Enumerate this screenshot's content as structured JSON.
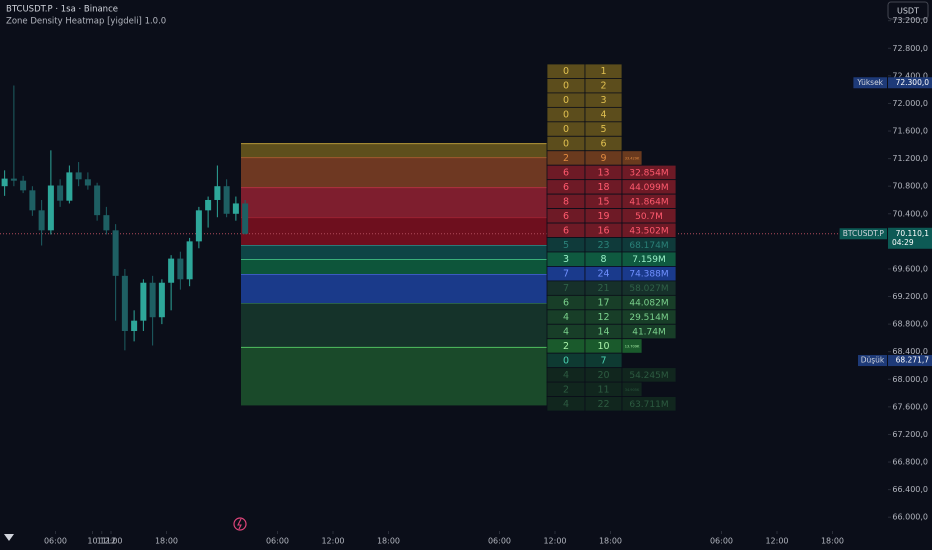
{
  "chart_data": {
    "type": "candlestick",
    "title": "BTCUSDT.P · 1sa · Binance",
    "subtitle": "Zone Density Heatmap [yigdeli] 1.0.0",
    "currency_button": "USDT",
    "xlim": [
      0,
      96
    ],
    "xticks": [
      {
        "value": 6,
        "label": "06:00"
      },
      {
        "value": 12,
        "label": "12:00"
      },
      {
        "value": 18,
        "label": "18:00"
      },
      10,
      {
        "value": 30,
        "label": "06:00"
      },
      {
        "value": 36,
        "label": "12:00"
      },
      {
        "value": 42,
        "label": "18:00"
      },
      11,
      {
        "value": 54,
        "label": "06:00"
      },
      {
        "value": 60,
        "label": "12:00"
      },
      {
        "value": 66,
        "label": "18:00"
      },
      12,
      {
        "value": 78,
        "label": "06:00"
      },
      {
        "value": 84,
        "label": "12:00"
      },
      {
        "value": 90,
        "label": "18:00"
      }
    ],
    "ylim": [
      65800,
      73500
    ],
    "yticks": [
      {
        "value": 73200,
        "label": "73.200,0"
      },
      {
        "value": 72800,
        "label": "72.800,0"
      },
      {
        "value": 72400,
        "label": "72.400,0"
      },
      {
        "value": 72000,
        "label": "72.000,0"
      },
      {
        "value": 71600,
        "label": "71.600,0"
      },
      {
        "value": 71200,
        "label": "71.200,0"
      },
      {
        "value": 70800,
        "label": "70.800,0"
      },
      {
        "value": 70400,
        "label": "70.400,0"
      },
      {
        "value": 70000,
        "label": "70.000,0"
      },
      {
        "value": 69600,
        "label": "69.600,0"
      },
      {
        "value": 69200,
        "label": "69.200,0"
      },
      {
        "value": 68800,
        "label": "68.800,0"
      },
      {
        "value": 68400,
        "label": "68.400,0"
      },
      {
        "value": 68000,
        "label": "68.000,0"
      },
      {
        "value": 67600,
        "label": "67.600,0"
      },
      {
        "value": 67200,
        "label": "67.200,0"
      },
      {
        "value": 66800,
        "label": "66.800,0"
      },
      {
        "value": 66400,
        "label": "66.400,0"
      },
      {
        "value": 66000,
        "label": "66.000,0"
      }
    ],
    "up_color": "#2ea79a",
    "down_color": "#1e5f63",
    "x": [
      0.5,
      1.5,
      2.5,
      3.5,
      4.5,
      5.5,
      6.5,
      7.5,
      8.5,
      9.5,
      10.5,
      11.5,
      12.5,
      13.5,
      14.5,
      15.5,
      16.5,
      17.5,
      18.5,
      19.5,
      20.5,
      21.5,
      22.5,
      23.5,
      24.5,
      25.5,
      26.5
    ],
    "open": [
      70800,
      70910,
      70880,
      70740,
      70450,
      70160,
      70810,
      70590,
      71000,
      70900,
      70810,
      70380,
      70160,
      69500,
      68700,
      68850,
      69400,
      68900,
      69400,
      69750,
      69450,
      70000,
      70450,
      70600,
      70800,
      70400,
      70550
    ],
    "high": [
      71030,
      72260,
      70950,
      70800,
      70600,
      71320,
      70900,
      71100,
      71150,
      71000,
      70850,
      70500,
      70250,
      69600,
      69000,
      69450,
      69500,
      69450,
      69800,
      69850,
      70050,
      70500,
      70650,
      71100,
      70900,
      70650,
      70600
    ],
    "low": [
      70660,
      70800,
      70700,
      70370,
      69940,
      70100,
      70500,
      70550,
      70800,
      70750,
      70300,
      70100,
      68850,
      68420,
      68550,
      68700,
      68490,
      68800,
      69000,
      69300,
      69350,
      69900,
      70200,
      70350,
      70350,
      70300,
      70100
    ],
    "close": [
      70910,
      70880,
      70740,
      70450,
      70160,
      70810,
      70590,
      71000,
      70900,
      70810,
      70380,
      70160,
      69500,
      68700,
      68850,
      69400,
      68900,
      69400,
      69750,
      69450,
      70000,
      70450,
      70600,
      70800,
      70400,
      70550,
      70110.1
    ],
    "last_price_line_color": "#b04a5a",
    "zones": [
      {
        "high": 71418,
        "low": 71215,
        "color": "#5e4f1c",
        "line": "#b89a38"
      },
      {
        "high": 71215,
        "low": 70780,
        "color": "#6e3822",
        "line": "#a0582e"
      },
      {
        "high": 70780,
        "low": 70345,
        "color": "#7e1e2e",
        "line": "#b03040"
      },
      {
        "high": 70345,
        "low": 69940,
        "color": "#6e0f1e",
        "line": "#9a2030"
      },
      {
        "high": 69940,
        "low": 69737,
        "color": "#0e4546",
        "line": "#2a7a78"
      },
      {
        "high": 69737,
        "low": 69520,
        "color": "#0d553a",
        "line": "#3ab07a"
      },
      {
        "high": 69520,
        "low": 69099,
        "color": "#1a3a8a",
        "line": "#3a5ac0"
      },
      {
        "high": 69099,
        "low": 68462,
        "color": "#15332a",
        "line": "#2a6048"
      },
      {
        "high": 68462,
        "low": 67621,
        "color": "#1a4a2a",
        "line": "#50c060"
      }
    ],
    "table": {
      "rows": [
        [
          0,
          1
        ],
        [
          0,
          2
        ],
        [
          0,
          3
        ],
        [
          0,
          4
        ],
        [
          0,
          5
        ],
        [
          0,
          6
        ],
        [
          2,
          9,
          "33.429K"
        ],
        [
          6,
          13,
          "32.854M"
        ],
        [
          6,
          18,
          "44.099M"
        ],
        [
          8,
          15,
          "41.864M"
        ],
        [
          6,
          19,
          "50.7M"
        ],
        [
          6,
          16,
          "43.502M"
        ],
        [
          5,
          23,
          "68.174M"
        ],
        [
          3,
          8,
          "7.159M"
        ],
        [
          7,
          24,
          "74.388M"
        ],
        [
          7,
          21,
          "58.027M"
        ],
        [
          6,
          17,
          "44.082M"
        ],
        [
          4,
          12,
          "29.514M"
        ],
        [
          4,
          14,
          "41.74M"
        ],
        [
          2,
          10,
          "13.709K"
        ],
        [
          0,
          7
        ],
        [
          4,
          20,
          "54.245M"
        ],
        [
          2,
          11,
          "34.905K"
        ],
        [
          4,
          22,
          "63.711M"
        ]
      ],
      "row_styles": [
        {
          "fill": "#5c4d1c",
          "text": "#e0c050"
        },
        {
          "fill": "#5c4d1c",
          "text": "#e0c050"
        },
        {
          "fill": "#5c4d1c",
          "text": "#e0c050"
        },
        {
          "fill": "#5c4d1c",
          "text": "#e0c050"
        },
        {
          "fill": "#5c4d1c",
          "text": "#e0c050"
        },
        {
          "fill": "#5c4d1c",
          "text": "#e0c050"
        },
        {
          "fill": "#6a3a1e",
          "text": "#e08a40",
          "compact": true
        },
        {
          "fill": "#6e1a26",
          "text": "#ff5a6e"
        },
        {
          "fill": "#6e1a26",
          "text": "#ff5a6e"
        },
        {
          "fill": "#6e1a26",
          "text": "#ff5a6e"
        },
        {
          "fill": "#6e1a26",
          "text": "#ff5a6e"
        },
        {
          "fill": "#6e1a26",
          "text": "#ff5a6e"
        },
        {
          "fill": "#0f3a3a",
          "text": "#2a8078"
        },
        {
          "fill": "#0f5a40",
          "text": "#9af0c8"
        },
        {
          "fill": "#1a3a8c",
          "text": "#7090ff"
        },
        {
          "fill": "#16302a",
          "text": "#2f6048"
        },
        {
          "fill": "#183e28",
          "text": "#7ad08c"
        },
        {
          "fill": "#183e28",
          "text": "#7ad08c"
        },
        {
          "fill": "#183e28",
          "text": "#7ad08c"
        },
        {
          "fill": "#1a5a2c",
          "text": "#a8f0a8",
          "compact": true
        },
        {
          "fill": "#0e3a32",
          "text": "#4ad0b0"
        },
        {
          "fill": "#11261e",
          "text": "#2c5a40"
        },
        {
          "fill": "#11261e",
          "text": "#2c5a40",
          "compact": true
        },
        {
          "fill": "#11261e",
          "text": "#2c5a40"
        }
      ]
    },
    "price_labels": [
      {
        "label": "Yüksek",
        "value": 72300,
        "value_label": "72.300,0",
        "color": "#1e3a78"
      },
      {
        "label": "BTCUSDT.P",
        "value": 70110.1,
        "value_label": "70.110,1",
        "countdown": "04:29",
        "color": "#0d5a55"
      },
      {
        "label": "Düşük",
        "value": 68271.7,
        "value_label": "68.271,7",
        "color": "#1e3a78"
      }
    ]
  }
}
